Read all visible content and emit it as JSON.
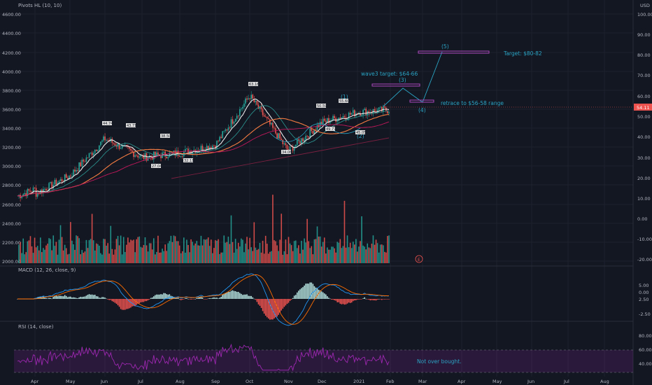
{
  "app": {
    "title": "Pivots HL (10, 10)",
    "currency": "USD",
    "colors": {
      "background": "#131722",
      "up": "#26a69a",
      "down": "#ef5350",
      "ma_fast": "#e8e8e8",
      "ma_mid": "#f57c42",
      "ma_slow": "#c2185b",
      "projection": "#2aa4c4",
      "target_box": "#ab47bc",
      "rsi": "#9c27b0"
    }
  },
  "price_pane": {
    "left_ticks": [
      "4600.00",
      "4400.00",
      "4200.00",
      "4000.00",
      "3800.00",
      "3600.00",
      "3400.00",
      "3200.00",
      "3000.00",
      "2800.00",
      "2600.00",
      "2400.00",
      "2200.00",
      "2000.00"
    ],
    "right_ticks": [
      "100.00",
      "90.00",
      "80.00",
      "70.00",
      "60.00",
      "50.00",
      "40.00",
      "30.00",
      "20.00",
      "10.00",
      "0.00",
      "-10.00",
      "-20.00"
    ],
    "last_price": "54.11",
    "pivot_labels": [
      "44.74",
      "43.71",
      "38.50",
      "27.04",
      "32.11",
      "63.16",
      "34.06",
      "50.59",
      "49.77",
      "55.60",
      "45.05"
    ],
    "wave_labels": [
      "(1)",
      "(2)",
      "(3)",
      "(4)",
      "(5)"
    ],
    "earnings_marker": "E",
    "annotations": {
      "wave3": "wave3 target: $64-66",
      "retrace": "retrace to $56-58 range",
      "target": "Target: $80-82"
    }
  },
  "macd_pane": {
    "title": "MACD (12, 26, close, 9)",
    "ticks": [
      "5.00",
      "2.50",
      "0.00",
      "-2.50"
    ]
  },
  "rsi_pane": {
    "title": "RSI (14, close)",
    "ticks": [
      "80.00",
      "60.00",
      "40.00"
    ],
    "annotation": "Not over bought."
  },
  "time_axis": {
    "labels": [
      "Apr",
      "May",
      "Jun",
      "Jul",
      "Aug",
      "Sep",
      "Oct",
      "Nov",
      "Dec",
      "2021",
      "Feb",
      "Mar",
      "Apr",
      "May",
      "Jun",
      "Jul",
      "Aug"
    ]
  },
  "chart_data": {
    "type": "line",
    "title": "Pivots HL (10, 10)",
    "y_axis_right": {
      "min": -20,
      "max": 100,
      "unit": "USD"
    },
    "series": [
      {
        "x": [
          "Apr",
          "May",
          "Jun",
          "Jul",
          "Aug",
          "Sep",
          "Oct",
          "Nov",
          "Dec",
          "2021",
          "Feb"
        ],
        "values": [
          13,
          22,
          40,
          31,
          33,
          37,
          61,
          34,
          48,
          53,
          54.11
        ]
      }
    ],
    "projection": [
      {
        "label": "(3)",
        "value": 65
      },
      {
        "label": "(4)",
        "value": 57
      },
      {
        "label": "(5)",
        "value": 81
      }
    ],
    "grid": true,
    "legend": "none"
  }
}
